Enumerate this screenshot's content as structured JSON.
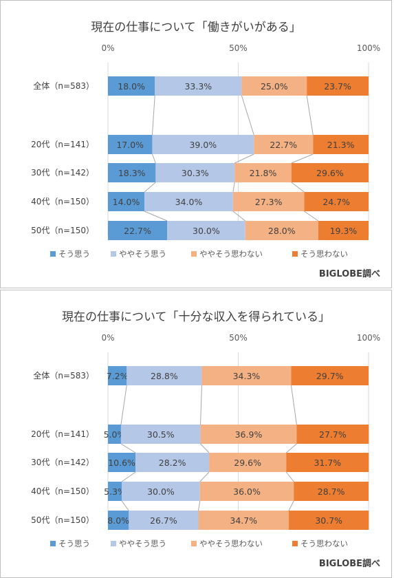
{
  "colors": [
    "#5b9bd5",
    "#b4c7e7",
    "#f4b183",
    "#ed7d31"
  ],
  "credit": "BIGLOBE調べ",
  "chart_data": [
    {
      "type": "bar",
      "stacked": "100%",
      "orientation": "horizontal",
      "title": "現在の仕事について「働きがいがある」",
      "x_ticks": [
        "0%",
        "50%",
        "100%"
      ],
      "xlim": [
        0,
        100
      ],
      "legend_position": "bottom",
      "grid": true,
      "categories": [
        "全体（n=583）",
        "20代（n=141）",
        "30代（n=142）",
        "40代（n=150）",
        "50代（n=150）"
      ],
      "series": [
        {
          "name": "そう思う",
          "values": [
            18.0,
            17.0,
            18.3,
            14.0,
            22.7
          ]
        },
        {
          "name": "ややそう思う",
          "values": [
            33.3,
            39.0,
            30.3,
            34.0,
            30.0
          ]
        },
        {
          "name": "ややそう思わない",
          "values": [
            25.0,
            22.7,
            21.8,
            27.3,
            28.0
          ]
        },
        {
          "name": "そう思わない",
          "values": [
            23.7,
            21.3,
            29.6,
            24.7,
            19.3
          ]
        }
      ]
    },
    {
      "type": "bar",
      "stacked": "100%",
      "orientation": "horizontal",
      "title": "現在の仕事について「十分な収入を得られている」",
      "x_ticks": [
        "0%",
        "50%",
        "100%"
      ],
      "xlim": [
        0,
        100
      ],
      "legend_position": "bottom",
      "grid": true,
      "categories": [
        "全体（n=583）",
        "20代（n=141）",
        "30代（n=142）",
        "40代（n=150）",
        "50代（n=150）"
      ],
      "series": [
        {
          "name": "そう思う",
          "values": [
            7.2,
            5.0,
            10.6,
            5.3,
            8.0
          ]
        },
        {
          "name": "ややそう思う",
          "values": [
            28.8,
            30.5,
            28.2,
            30.0,
            26.7
          ]
        },
        {
          "name": "ややそう思わない",
          "values": [
            34.3,
            36.9,
            29.6,
            36.0,
            34.7
          ]
        },
        {
          "name": "そう思わない",
          "values": [
            29.7,
            27.7,
            31.7,
            28.7,
            30.7
          ]
        }
      ]
    }
  ]
}
